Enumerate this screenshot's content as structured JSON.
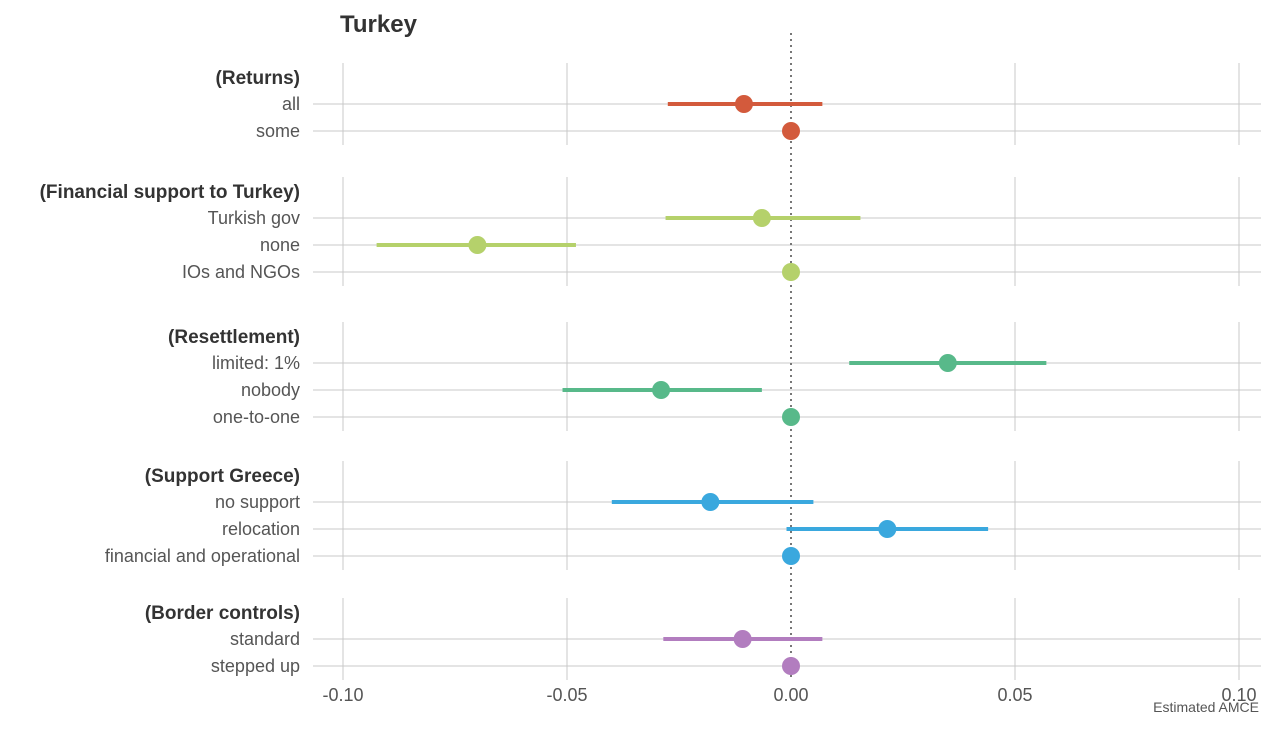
{
  "chart_data": {
    "type": "scatter",
    "subtype": "coefficient-plot",
    "title": "Turkey",
    "xlabel": "Estimated AMCE",
    "xlim": [
      -0.1,
      0.1
    ],
    "xticks": [
      -0.1,
      -0.05,
      0.0,
      0.05,
      0.1
    ],
    "xtick_labels": [
      "-0.10",
      "-0.05",
      "0.00",
      "0.05",
      "0.10"
    ],
    "reference_line": 0.0,
    "grid": true,
    "groups": [
      {
        "name": "(Returns)",
        "color": "#d35a3c",
        "levels": [
          {
            "label": "all",
            "estimate": -0.0105,
            "lower": -0.0275,
            "upper": 0.007
          },
          {
            "label": "some",
            "estimate": 0.0,
            "lower": 0.0,
            "upper": 0.0
          }
        ]
      },
      {
        "name": "(Financial support to Turkey)",
        "color": "#b5d16b",
        "levels": [
          {
            "label": "Turkish gov",
            "estimate": -0.0065,
            "lower": -0.028,
            "upper": 0.0155
          },
          {
            "label": "none",
            "estimate": -0.07,
            "lower": -0.0925,
            "upper": -0.048
          },
          {
            "label": "IOs and NGOs",
            "estimate": 0.0,
            "lower": 0.0,
            "upper": 0.0
          }
        ]
      },
      {
        "name": "(Resettlement)",
        "color": "#58b98a",
        "levels": [
          {
            "label": "limited: 1%",
            "estimate": 0.035,
            "lower": 0.013,
            "upper": 0.057
          },
          {
            "label": "nobody",
            "estimate": -0.029,
            "lower": -0.051,
            "upper": -0.0065
          },
          {
            "label": "one-to-one",
            "estimate": 0.0,
            "lower": 0.0,
            "upper": 0.0
          }
        ]
      },
      {
        "name": "(Support Greece)",
        "color": "#3aa8de",
        "levels": [
          {
            "label": "no support",
            "estimate": -0.018,
            "lower": -0.04,
            "upper": 0.005
          },
          {
            "label": "relocation",
            "estimate": 0.0215,
            "lower": -0.001,
            "upper": 0.044
          },
          {
            "label": "financial and operational",
            "estimate": 0.0,
            "lower": 0.0,
            "upper": 0.0
          }
        ]
      },
      {
        "name": "(Border controls)",
        "color": "#b27dbf",
        "levels": [
          {
            "label": "standard",
            "estimate": -0.0108,
            "lower": -0.0285,
            "upper": 0.007
          },
          {
            "label": "stepped up",
            "estimate": 0.0,
            "lower": 0.0,
            "upper": 0.0
          }
        ]
      }
    ]
  },
  "colors": {
    "grid": "#c8c8c8",
    "zero_line": "#777777",
    "text": "#333333",
    "muted_text": "#555555"
  }
}
